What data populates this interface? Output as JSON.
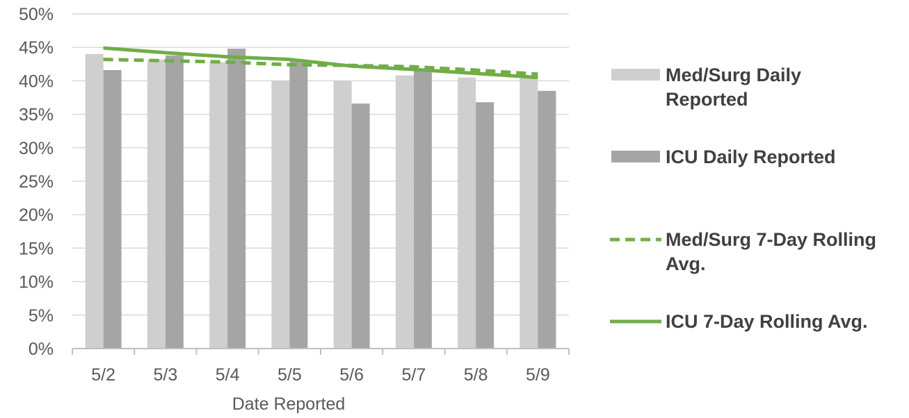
{
  "chart_data": {
    "type": "bar",
    "title": "",
    "xlabel": "Date Reported",
    "ylabel": "",
    "ylim": [
      0,
      50
    ],
    "ytick_step": 5,
    "ytick_suffix": "%",
    "grid": true,
    "legend_position": "right",
    "categories": [
      "5/2",
      "5/3",
      "5/4",
      "5/5",
      "5/6",
      "5/7",
      "5/8",
      "5/9"
    ],
    "series": [
      {
        "name": "Med/Surg Daily Reported",
        "kind": "bar",
        "color": "#d0cfd0",
        "values": [
          44.0,
          43.2,
          42.8,
          40.0,
          40.0,
          40.8,
          40.5,
          40.5
        ]
      },
      {
        "name": "ICU Daily Reported",
        "kind": "bar",
        "color": "#a6a5a5",
        "values": [
          41.6,
          43.8,
          44.8,
          43.0,
          36.6,
          41.6,
          36.8,
          38.5
        ]
      },
      {
        "name": "Med/Surg 7-Day Rolling Avg.",
        "kind": "line",
        "style": "dashed",
        "color": "#70ad47",
        "values": [
          43.2,
          43.0,
          42.8,
          42.4,
          42.3,
          42.1,
          41.6,
          41.0
        ]
      },
      {
        "name": "ICU 7-Day Rolling Avg.",
        "kind": "line",
        "style": "solid",
        "color": "#70ad47",
        "values": [
          44.9,
          44.2,
          43.6,
          43.2,
          42.2,
          41.7,
          41.1,
          40.5
        ]
      }
    ]
  }
}
